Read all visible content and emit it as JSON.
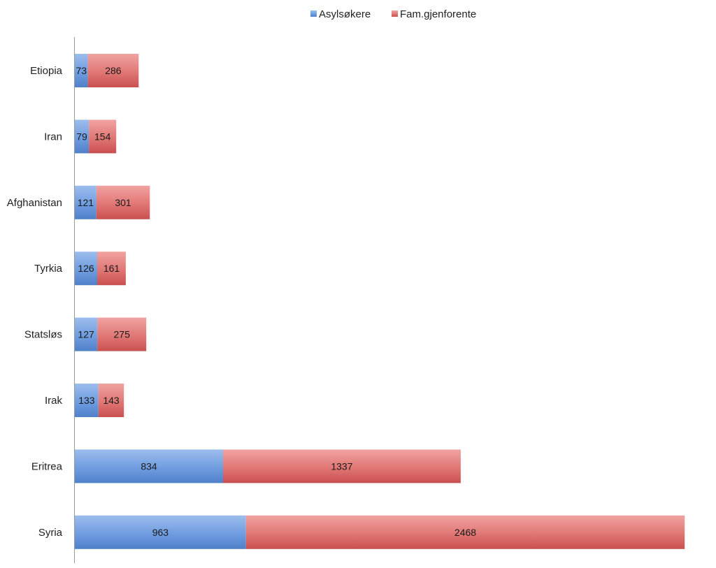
{
  "chart_data": {
    "type": "bar",
    "orientation": "horizontal",
    "stacked": true,
    "categories": [
      "Etiopia",
      "Iran",
      "Afghanistan",
      "Tyrkia",
      "Statsløs",
      "Irak",
      "Eritrea",
      "Syria"
    ],
    "series": [
      {
        "name": "Asylsøkere",
        "color": "#5b8fd6",
        "values": [
          73,
          79,
          121,
          126,
          127,
          133,
          834,
          963
        ]
      },
      {
        "name": "Fam.gjenforente",
        "color": "#d9595a",
        "values": [
          286,
          154,
          301,
          161,
          275,
          143,
          1337,
          2468
        ]
      }
    ],
    "xlim": [
      0,
      3500
    ],
    "legend": "top-center",
    "grid": false
  }
}
